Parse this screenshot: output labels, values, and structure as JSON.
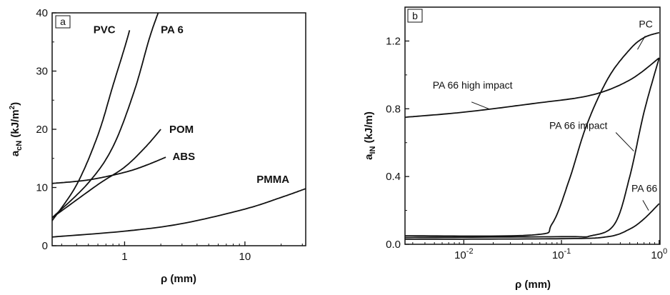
{
  "chart_data": [
    {
      "panel": "a",
      "type": "line",
      "xscale": "log",
      "xlim": [
        0.25,
        32
      ],
      "ylim": [
        0,
        40
      ],
      "xlabel": "ρ (mm)",
      "ylabel_main": "a",
      "ylabel_sub": "cN",
      "ylabel_unit": " (kJ/m",
      "ylabel_sup": "2",
      "ylabel_end": ")",
      "xticks": [
        {
          "v": 1,
          "label": "1"
        },
        {
          "v": 10,
          "label": "10"
        }
      ],
      "yticks": [
        {
          "v": 0,
          "label": "0"
        },
        {
          "v": 10,
          "label": "10"
        },
        {
          "v": 20,
          "label": "20"
        },
        {
          "v": 30,
          "label": "30"
        },
        {
          "v": 40,
          "label": "40"
        }
      ],
      "series": [
        {
          "name": "PVC",
          "label_at": [
            0.55,
            36.5
          ],
          "points": [
            [
              0.25,
              4.3
            ],
            [
              0.4,
              10.5
            ],
            [
              0.6,
              19.0
            ],
            [
              0.8,
              27.5
            ],
            [
              1.0,
              34.0
            ],
            [
              1.1,
              37.0
            ]
          ]
        },
        {
          "name": "PA 6",
          "label_at": [
            2.0,
            36.5
          ],
          "points": [
            [
              0.25,
              4.8
            ],
            [
              0.5,
              10.8
            ],
            [
              0.8,
              17.0
            ],
            [
              1.2,
              26.5
            ],
            [
              1.6,
              35.5
            ],
            [
              1.9,
              40.0
            ]
          ]
        },
        {
          "name": "POM",
          "label_at": [
            2.35,
            19.4
          ],
          "points": [
            [
              0.25,
              4.8
            ],
            [
              0.6,
              10.5
            ],
            [
              1.0,
              13.5
            ],
            [
              1.5,
              17.0
            ],
            [
              2.0,
              20.0
            ]
          ]
        },
        {
          "name": "ABS",
          "label_at": [
            2.5,
            14.7
          ],
          "points": [
            [
              0.25,
              10.7
            ],
            [
              0.5,
              11.3
            ],
            [
              1.0,
              12.6
            ],
            [
              1.5,
              13.8
            ],
            [
              2.2,
              15.2
            ]
          ]
        },
        {
          "name": "PMMA",
          "label_at": [
            12.5,
            10.8
          ],
          "points": [
            [
              0.25,
              1.5
            ],
            [
              1.0,
              2.5
            ],
            [
              3.0,
              3.8
            ],
            [
              10.0,
              6.3
            ],
            [
              20.0,
              8.3
            ],
            [
              32.0,
              9.8
            ]
          ]
        }
      ]
    },
    {
      "panel": "b",
      "type": "line",
      "xscale": "log",
      "xlim": [
        0.0025,
        1.02
      ],
      "ylim": [
        0,
        1.4
      ],
      "xlabel": "ρ (mm)",
      "ylabel_main": "a",
      "ylabel_sub": "IN",
      "ylabel_unit": " (kJ/m)",
      "xticks": [
        {
          "v": 0.01,
          "base": "10",
          "exp": "-2"
        },
        {
          "v": 0.1,
          "base": "10",
          "exp": "-1"
        },
        {
          "v": 1,
          "base": "10",
          "exp": "0"
        }
      ],
      "yticks": [
        {
          "v": 0,
          "label": "0.0"
        },
        {
          "v": 0.4,
          "label": "0.4"
        },
        {
          "v": 0.8,
          "label": "0.8"
        },
        {
          "v": 1.2,
          "label": "1.2"
        }
      ],
      "series": [
        {
          "name": "PC",
          "label_at": [
            0.62,
            1.28
          ],
          "points": [
            [
              0.0025,
              0.05
            ],
            [
              0.05,
              0.055
            ],
            [
              0.08,
              0.12
            ],
            [
              0.12,
              0.38
            ],
            [
              0.18,
              0.7
            ],
            [
              0.3,
              0.98
            ],
            [
              0.5,
              1.15
            ],
            [
              0.7,
              1.22
            ],
            [
              1.0,
              1.25
            ]
          ]
        },
        {
          "name": "PA 66 high impact",
          "label_at": [
            0.0048,
            0.92
          ],
          "points": [
            [
              0.0025,
              0.75
            ],
            [
              0.01,
              0.78
            ],
            [
              0.05,
              0.83
            ],
            [
              0.2,
              0.88
            ],
            [
              0.5,
              0.97
            ],
            [
              1.0,
              1.1
            ]
          ]
        },
        {
          "name": "PA 66 impact",
          "label_at": [
            0.075,
            0.68
          ],
          "points": [
            [
              0.0025,
              0.04
            ],
            [
              0.1,
              0.045
            ],
            [
              0.2,
              0.05
            ],
            [
              0.35,
              0.12
            ],
            [
              0.5,
              0.4
            ],
            [
              0.7,
              0.78
            ],
            [
              1.0,
              1.1
            ]
          ]
        },
        {
          "name": "PA 66",
          "label_at": [
            0.52,
            0.31
          ],
          "points": [
            [
              0.0025,
              0.03
            ],
            [
              0.1,
              0.033
            ],
            [
              0.3,
              0.045
            ],
            [
              0.5,
              0.09
            ],
            [
              0.7,
              0.15
            ],
            [
              1.0,
              0.24
            ]
          ]
        }
      ],
      "leaders": [
        {
          "from": [
            0.72,
            1.23
          ],
          "to": [
            0.6,
            1.15
          ]
        },
        {
          "from": [
            0.012,
            0.84
          ],
          "to": [
            0.018,
            0.8
          ]
        },
        {
          "from": [
            0.36,
            0.66
          ],
          "to": [
            0.55,
            0.55
          ]
        },
        {
          "from": [
            0.68,
            0.26
          ],
          "to": [
            0.78,
            0.2
          ]
        }
      ]
    }
  ]
}
